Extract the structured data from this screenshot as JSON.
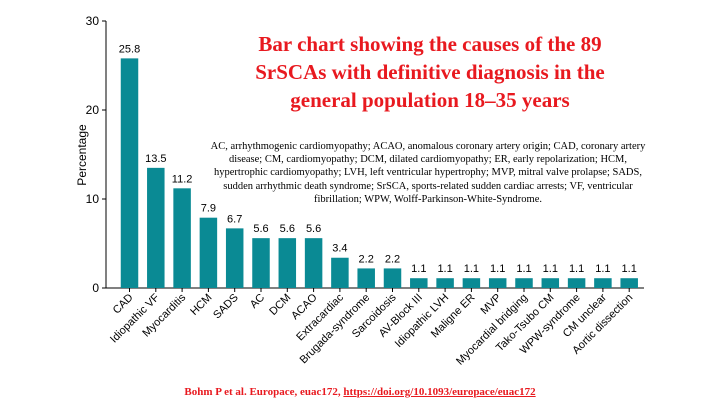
{
  "chart_data": {
    "type": "bar",
    "ylabel": "Percentage",
    "ylim": [
      0,
      30
    ],
    "yticks": [
      0,
      10,
      20,
      30
    ],
    "color": "#0a8a94",
    "categories": [
      "CAD",
      "Idiopathic VF",
      "Myocarditis",
      "HCM",
      "SADS",
      "AC",
      "DCM",
      "ACAO",
      "Extracardiac",
      "Brugada-syndrome",
      "Sarcoidosis",
      "AV-Block III",
      "Idiopathic LVH",
      "Maligne ER",
      "MVP",
      "Myocardial bridging",
      "Tako-Tsubo CM",
      "WPW-syndrome",
      "CM unclear",
      "Aortic dissection"
    ],
    "values": [
      25.8,
      13.5,
      11.2,
      7.9,
      6.7,
      5.6,
      5.6,
      5.6,
      3.4,
      2.2,
      2.2,
      1.1,
      1.1,
      1.1,
      1.1,
      1.1,
      1.1,
      1.1,
      1.1,
      1.1
    ],
    "value_labels": [
      "25.8",
      "13.5",
      "11.2",
      "7.9",
      "6.7",
      "5.6",
      "5.6",
      "5.6",
      "3.4",
      "2.2",
      "2.2",
      "1.1",
      "1.1",
      "1.1",
      "1.1",
      "1.1",
      "1.1",
      "1.1",
      "1.1",
      "1.1"
    ]
  },
  "title_lines": [
    "Bar chart showing the causes of the 89",
    "SrSCAs with definitive diagnosis in the",
    "general population 18–35 years"
  ],
  "abbreviations": "AC, arrhythmogenic cardiomyopathy; ACAO, anomalous coronary artery origin; CAD, coronary artery disease; CM, cardiomyopathy; DCM, dilated cardiomyopathy; ER, early repolarization; HCM, hypertrophic cardiomyopathy; LVH, left ventricular hypertrophy; MVP, mitral valve prolapse; SADS, sudden arrhythmic death syndrome; SrSCA, sports-related sudden cardiac arrests; VF, ventricular fibrillation; WPW, Wolff-Parkinson-White-Syndrome.",
  "citation": {
    "prefix": "Bohm P et al. Europace, euac172, ",
    "link": "https://doi.org/10.1093/europace/euac172"
  }
}
